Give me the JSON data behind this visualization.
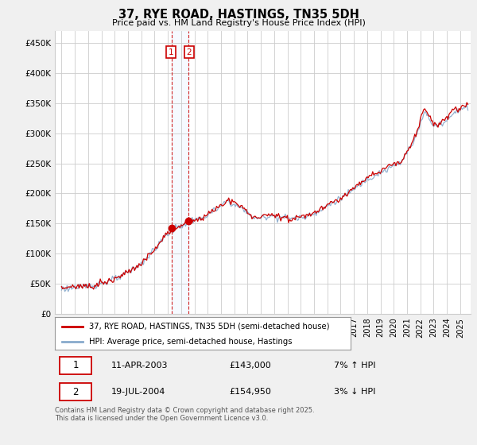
{
  "title": "37, RYE ROAD, HASTINGS, TN35 5DH",
  "subtitle": "Price paid vs. HM Land Registry's House Price Index (HPI)",
  "legend_entry1": "37, RYE ROAD, HASTINGS, TN35 5DH (semi-detached house)",
  "legend_entry2": "HPI: Average price, semi-detached house, Hastings",
  "footer": "Contains HM Land Registry data © Crown copyright and database right 2025.\nThis data is licensed under the Open Government Licence v3.0.",
  "sale1_date": "11-APR-2003",
  "sale1_price": "£143,000",
  "sale1_hpi": "7% ↑ HPI",
  "sale1_label": "1",
  "sale1_x": 2003.27,
  "sale1_price_val": 143000,
  "sale2_date": "19-JUL-2004",
  "sale2_price": "£154,950",
  "sale2_hpi": "3% ↓ HPI",
  "sale2_label": "2",
  "sale2_x": 2004.54,
  "sale2_price_val": 154950,
  "line_color_price": "#cc0000",
  "line_color_hpi": "#88aacc",
  "marker_color": "#cc0000",
  "vline_color": "#cc0000",
  "shade_color": "#ddeeff",
  "ylim_min": 0,
  "ylim_max": 470000,
  "yticks": [
    0,
    50000,
    100000,
    150000,
    200000,
    250000,
    300000,
    350000,
    400000,
    450000
  ],
  "ytick_labels": [
    "£0",
    "£50K",
    "£100K",
    "£150K",
    "£200K",
    "£250K",
    "£300K",
    "£350K",
    "£400K",
    "£450K"
  ],
  "xlim_min": 1994.5,
  "xlim_max": 2025.8,
  "bg_color": "#f0f0f0",
  "plot_bg_color": "#ffffff",
  "grid_color": "#cccccc"
}
